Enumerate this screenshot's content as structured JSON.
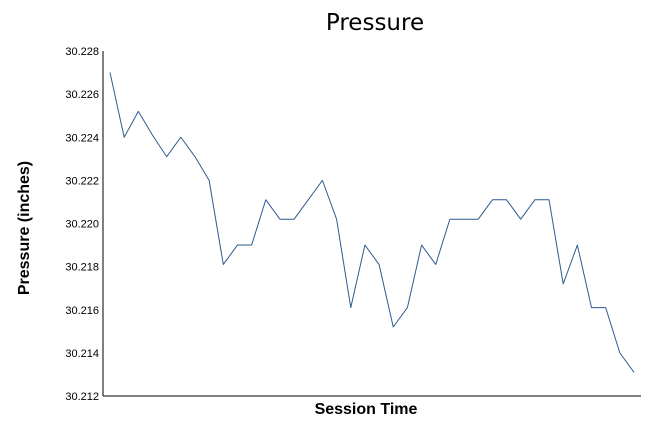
{
  "chart_data": {
    "type": "line",
    "title": "Pressure",
    "xlabel": "Session Time",
    "ylabel": "Pressure (inches)",
    "ylim": [
      30.212,
      30.228
    ],
    "yticks": [
      "30.212",
      "30.214",
      "30.216",
      "30.218",
      "30.220",
      "30.222",
      "30.224",
      "30.226",
      "30.228"
    ],
    "grid": false,
    "legend": "none",
    "series": [
      {
        "color": "#2e5b8f",
        "values": [
          30.227,
          30.224,
          30.2252,
          30.2241,
          30.2231,
          30.224,
          30.2231,
          30.222,
          30.2181,
          30.219,
          30.219,
          30.2211,
          30.2202,
          30.2202,
          30.2211,
          30.222,
          30.2202,
          30.2161,
          30.219,
          30.2181,
          30.2152,
          30.2161,
          30.219,
          30.2181,
          30.2202,
          30.2202,
          30.2202,
          30.2211,
          30.2211,
          30.2202,
          30.2211,
          30.2211,
          30.2172,
          30.219,
          30.2161,
          30.2161,
          30.214,
          30.2131
        ]
      }
    ]
  }
}
